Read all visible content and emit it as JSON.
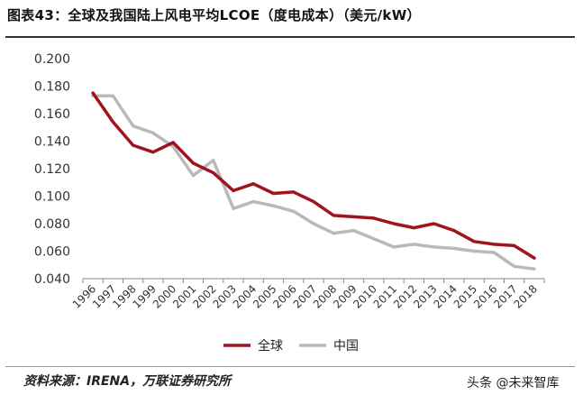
{
  "title": "图表43：全球及我国陆上风电平均LCOE（度电成本）（美元/kW）",
  "source": "资料来源：IRENA，万联证券研究所",
  "watermark": "头条 @未来智库",
  "colors": {
    "global": "#a0141c",
    "china": "#b9b9b9",
    "axis": "#888888"
  },
  "chart_data": {
    "type": "line",
    "title": "图表43：全球及我国陆上风电平均LCOE（度电成本）（美元/kW）",
    "xlabel": "",
    "ylabel": "",
    "categories": [
      "1996",
      "1997",
      "1998",
      "1999",
      "2000",
      "2001",
      "2002",
      "2003",
      "2004",
      "2005",
      "2006",
      "2007",
      "2008",
      "2009",
      "2010",
      "2011",
      "2012",
      "2013",
      "2014",
      "2015",
      "2016",
      "2017",
      "2018"
    ],
    "ylim": [
      0.04,
      0.2
    ],
    "yticks": [
      "0.200",
      "0.180",
      "0.160",
      "0.140",
      "0.120",
      "0.100",
      "0.080",
      "0.060",
      "0.040"
    ],
    "grid": false,
    "legend": "bottom",
    "series": [
      {
        "name": "全球",
        "color": "#a0141c",
        "values": [
          0.175,
          0.154,
          0.137,
          0.132,
          0.139,
          0.124,
          0.117,
          0.104,
          0.109,
          0.102,
          0.103,
          0.096,
          0.086,
          0.085,
          0.084,
          0.08,
          0.077,
          0.08,
          0.075,
          0.067,
          0.065,
          0.064,
          0.055
        ]
      },
      {
        "name": "中国",
        "color": "#b9b9b9",
        "values": [
          0.173,
          0.173,
          0.151,
          0.146,
          0.136,
          0.115,
          0.126,
          0.091,
          0.096,
          0.093,
          0.089,
          0.08,
          0.073,
          0.075,
          0.069,
          0.063,
          0.065,
          0.063,
          0.062,
          0.06,
          0.059,
          0.049,
          0.047
        ]
      }
    ]
  }
}
